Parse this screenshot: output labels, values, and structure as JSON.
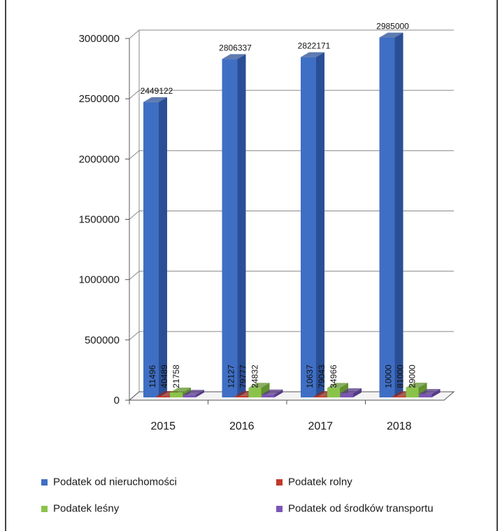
{
  "colors": {
    "series": [
      "#3f6fc4",
      "#c0392b",
      "#8bc34a",
      "#7b55b5"
    ],
    "series_dark": [
      "#2a4f96",
      "#8e2a20",
      "#62912f",
      "#563a86"
    ],
    "grid": "#888888",
    "wall": "#ffffff"
  },
  "chart_data": {
    "type": "bar",
    "categories": [
      "2015",
      "2016",
      "2017",
      "2018"
    ],
    "series": [
      {
        "name": "Podatek od nieruchomości",
        "values": [
          2449122,
          2806337,
          2822171,
          2985000
        ]
      },
      {
        "name": "Podatek rolny",
        "values": [
          11496,
          12127,
          10637,
          10000
        ]
      },
      {
        "name": "Podatek leśny",
        "values": [
          40489,
          79777,
          79043,
          81000
        ]
      },
      {
        "name": "Podatek od środków transportu",
        "values": [
          21758,
          24832,
          34966,
          29000
        ]
      }
    ],
    "y_ticks": [
      "0",
      "500000",
      "1000000",
      "1500000",
      "2000000",
      "2500000",
      "3000000"
    ],
    "ylim": [
      0,
      3000000
    ],
    "grid": true,
    "legend": "bottom"
  }
}
